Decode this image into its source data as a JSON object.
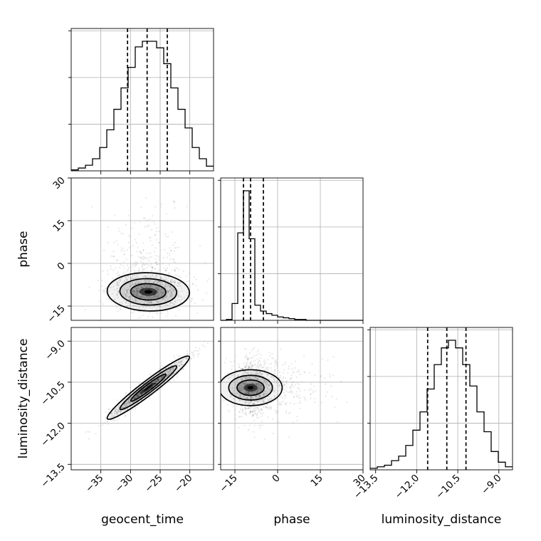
{
  "chart_data": {
    "type": "corner",
    "parameters": [
      {
        "name": "geocent_time",
        "label": "geocent_time",
        "range": [
          -40,
          -16
        ],
        "ticks": [
          -35,
          -30,
          -25,
          -20
        ],
        "tick_labels": [
          "−35",
          "−30",
          "−25",
          "−20"
        ],
        "quantiles": [
          -30.5,
          -27.2,
          -23.8
        ],
        "histogram": {
          "edges_start": -40,
          "bin_width": 1.2,
          "counts": [
            1,
            3,
            6,
            13,
            25,
            44,
            66,
            89,
            111,
            133,
            139,
            139,
            132,
            115,
            89,
            66,
            46,
            25,
            13,
            5,
            1,
            0
          ]
        }
      },
      {
        "name": "phase",
        "label": "phase",
        "range": [
          -20,
          30
        ],
        "ticks": [
          -15,
          0,
          15,
          30
        ],
        "tick_labels": [
          "−15",
          "0",
          "15",
          "30"
        ],
        "quantiles": [
          -12,
          -9.5,
          -5
        ],
        "histogram": {
          "edges_start": -20,
          "bin_width": 2.0,
          "counts": [
            0,
            1,
            20,
            104,
            154,
            97,
            18,
            11,
            8,
            6,
            4,
            3,
            2,
            1,
            1,
            0,
            0,
            0,
            0,
            0,
            0,
            0,
            0,
            0,
            0
          ]
        }
      },
      {
        "name": "luminosity_distance",
        "label": "luminosity_distance",
        "range": [
          -13.7,
          -8.5
        ],
        "ticks": [
          -13.5,
          -12.0,
          -10.5,
          -9.0
        ],
        "tick_labels": [
          "−13.5",
          "−12.0",
          "−10.5",
          "−9.0"
        ],
        "quantiles": [
          -11.6,
          -10.9,
          -10.2
        ],
        "histogram": {
          "edges_start": -13.7,
          "bin_width": 0.26,
          "counts": [
            1,
            2,
            3,
            6,
            9,
            16,
            26,
            38,
            53,
            69,
            80,
            85,
            80,
            69,
            55,
            38,
            25,
            12,
            5,
            2,
            0
          ]
        }
      }
    ],
    "pairs": [
      {
        "x": "geocent_time",
        "y": "phase",
        "center": [
          -27,
          -10
        ],
        "spread": [
          3.3,
          3.2
        ],
        "correlation": -0.05,
        "scatter_tail": "positive-phase tail"
      },
      {
        "x": "geocent_time",
        "y": "luminosity_distance",
        "center": [
          -27,
          -10.7
        ],
        "spread": [
          3.3,
          0.55
        ],
        "correlation": 0.96
      },
      {
        "x": "phase",
        "y": "luminosity_distance",
        "center": [
          -9.5,
          -10.7
        ],
        "spread": [
          3.0,
          0.55
        ],
        "correlation": 0.0,
        "scatter_tail": "positive-phase tail"
      }
    ],
    "grid": true
  }
}
